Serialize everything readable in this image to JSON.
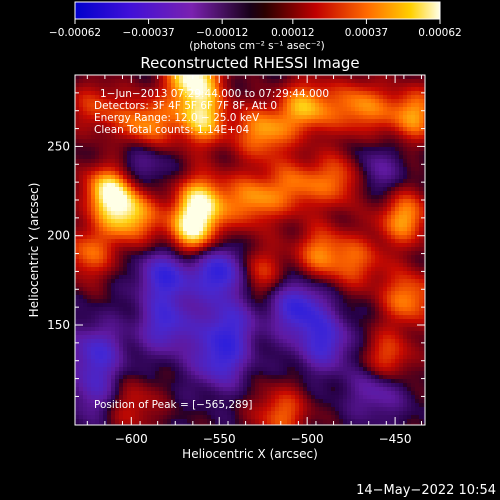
{
  "chart_data": {
    "type": "heatmap",
    "title": "Reconstructed RHESSI Image",
    "xlabel": "Heliocentric X (arcsec)",
    "ylabel": "Heliocentric Y (arcsec)",
    "xlim": [
      -632,
      -433
    ],
    "ylim": [
      94,
      290
    ],
    "xticks": [
      -600,
      -550,
      -500,
      -450
    ],
    "xtick_labels": [
      "−600",
      "−550",
      "−500",
      "−450"
    ],
    "yticks": [
      150,
      200,
      250
    ],
    "ytick_labels": [
      "150",
      "200",
      "250"
    ],
    "colorbar": {
      "range": [
        -0.00062,
        0.00062
      ],
      "ticks": [
        -0.00062,
        -0.00037,
        -0.00012,
        0.00012,
        0.00037,
        0.00062
      ],
      "tick_labels": [
        "−0.00062",
        "−0.00037",
        "−0.00012",
        "0.00012",
        "0.00037",
        "0.00062"
      ],
      "units_label": "(photons cm⁻² s⁻¹ asec⁻²)"
    },
    "annotations": [
      "1−Jun−2013 07:29:44.000 to 07:29:44.000",
      "Detectors: 3F 4F 5F 6F 7F 8F, Att 0",
      "Energy Range: 12.0 − 25.0 keV",
      "Clean     Total counts: 1.14E+04",
      "Position of Peak = [−565,289]"
    ],
    "peak": {
      "x": -565,
      "y": 289
    },
    "blobs": [
      {
        "x": -565,
        "y": 289,
        "v": 1.0
      },
      {
        "x": -620,
        "y": 272,
        "v": 0.45
      },
      {
        "x": -592,
        "y": 262,
        "v": 0.7
      },
      {
        "x": -560,
        "y": 265,
        "v": 0.8
      },
      {
        "x": -525,
        "y": 258,
        "v": 0.7
      },
      {
        "x": -500,
        "y": 272,
        "v": 0.75
      },
      {
        "x": -470,
        "y": 272,
        "v": 0.65
      },
      {
        "x": -440,
        "y": 268,
        "v": 0.7
      },
      {
        "x": -612,
        "y": 225,
        "v": 0.95
      },
      {
        "x": -600,
        "y": 210,
        "v": 0.7
      },
      {
        "x": -560,
        "y": 220,
        "v": 0.8
      },
      {
        "x": -565,
        "y": 202,
        "v": 0.85
      },
      {
        "x": -530,
        "y": 220,
        "v": 0.65
      },
      {
        "x": -505,
        "y": 228,
        "v": 0.55
      },
      {
        "x": -478,
        "y": 232,
        "v": 0.7
      },
      {
        "x": -445,
        "y": 210,
        "v": 0.7
      },
      {
        "x": -625,
        "y": 190,
        "v": 0.55
      },
      {
        "x": -530,
        "y": 180,
        "v": 0.55
      },
      {
        "x": -492,
        "y": 190,
        "v": 0.6
      },
      {
        "x": -470,
        "y": 185,
        "v": 0.45
      },
      {
        "x": -442,
        "y": 165,
        "v": 0.65
      },
      {
        "x": -455,
        "y": 130,
        "v": 0.6
      },
      {
        "x": -600,
        "y": 105,
        "v": 0.4
      },
      {
        "x": -515,
        "y": 100,
        "v": 0.55
      },
      {
        "x": -580,
        "y": 178,
        "v": -0.7
      },
      {
        "x": -548,
        "y": 180,
        "v": -0.9
      },
      {
        "x": -620,
        "y": 135,
        "v": -0.55
      },
      {
        "x": -580,
        "y": 150,
        "v": -0.6
      },
      {
        "x": -550,
        "y": 130,
        "v": -0.6
      },
      {
        "x": -545,
        "y": 150,
        "v": -0.55
      },
      {
        "x": -505,
        "y": 160,
        "v": -0.7
      },
      {
        "x": -490,
        "y": 140,
        "v": -0.6
      },
      {
        "x": -460,
        "y": 115,
        "v": -0.5
      },
      {
        "x": -595,
        "y": 240,
        "v": -0.4
      },
      {
        "x": -465,
        "y": 235,
        "v": -0.5
      },
      {
        "x": -620,
        "y": 112,
        "v": -0.4
      }
    ]
  },
  "footer": {
    "timestamp": "14−May−2022 10:54"
  }
}
